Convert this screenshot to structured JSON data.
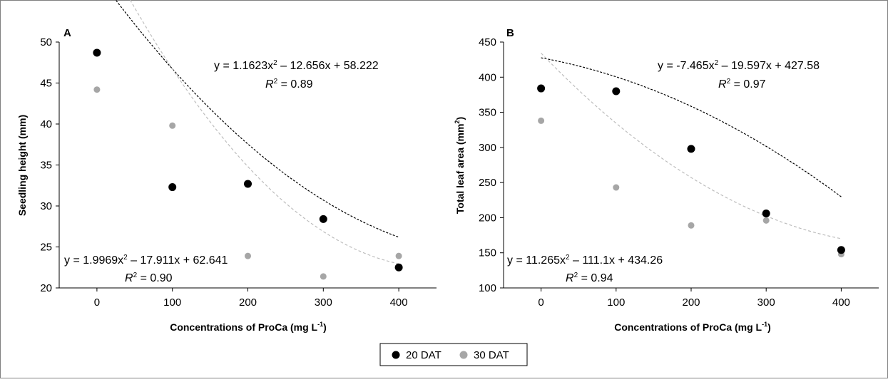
{
  "figure": {
    "border": true,
    "colors": {
      "series_20": "#000000",
      "series_30": "#a6a6a6",
      "trend_30": "#bdbdbd",
      "frame": "#808080"
    }
  },
  "legend": {
    "items": [
      "20 DAT",
      "30 DAT"
    ],
    "placement": "bottom-center"
  },
  "chart_data": [
    {
      "type": "scatter",
      "panel_label": "A",
      "xlabel": "Concentrations of ProCa (mg L",
      "xlabel_sup": "-1",
      "xlabel_close": ")",
      "ylabel": "Seedling height (mm)",
      "xlim": [
        -50,
        450
      ],
      "ylim": [
        20,
        50
      ],
      "xticks": [
        "0",
        "100",
        "200",
        "300",
        "400"
      ],
      "yticks": [
        "20",
        "25",
        "30",
        "35",
        "40",
        "45",
        "50"
      ],
      "grid": false,
      "series": [
        {
          "name": "20 DAT",
          "x": [
            0,
            100,
            200,
            300,
            400
          ],
          "y": [
            48.7,
            32.3,
            32.7,
            28.4,
            22.5
          ],
          "fit": [
            1.1623,
            -12.656,
            58.222
          ],
          "eq1": "y = 1.1623x",
          "eq1sup": "2",
          "eq1tail": " – 12.656x + 58.222",
          "r2": "= 0.89"
        },
        {
          "name": "30 DAT",
          "x": [
            0,
            100,
            200,
            300,
            400
          ],
          "y": [
            44.2,
            39.8,
            23.9,
            21.4,
            23.9
          ],
          "fit": [
            1.9969,
            -17.911,
            62.641
          ],
          "eq1": "y = 1.9969x",
          "eq1sup": "2",
          "eq1tail": " – 17.911x + 62.641",
          "r2": "= 0.90"
        }
      ]
    },
    {
      "type": "scatter",
      "panel_label": "B",
      "xlabel": "Concentrations of ProCa (mg L",
      "xlabel_sup": "-1",
      "xlabel_close": ")",
      "ylabel": "Total leaf area (mm",
      "ylabel_sup": "2",
      "ylabel_close": ")",
      "xlim": [
        -50,
        450
      ],
      "ylim": [
        100,
        450
      ],
      "xticks": [
        "0",
        "100",
        "200",
        "300",
        "400"
      ],
      "yticks": [
        "100",
        "150",
        "200",
        "250",
        "300",
        "350",
        "400",
        "450"
      ],
      "grid": false,
      "series": [
        {
          "name": "20 DAT",
          "x": [
            0,
            100,
            200,
            300,
            400
          ],
          "y": [
            384,
            380,
            298,
            206,
            154
          ],
          "fit": [
            -7.465,
            -19.597,
            427.58
          ],
          "eq1": "y = -7.465x",
          "eq1sup": "2",
          "eq1tail": " – 19.597x + 427.58",
          "r2": "= 0.97"
        },
        {
          "name": "30 DAT",
          "x": [
            0,
            100,
            200,
            300,
            400
          ],
          "y": [
            338,
            243,
            189,
            196,
            148
          ],
          "fit": [
            11.265,
            -111.1,
            434.26
          ],
          "eq1": "y = 11.265x",
          "eq1sup": "2",
          "eq1tail": " – 111.1x + 434.26",
          "r2": "= 0.94"
        }
      ]
    }
  ]
}
